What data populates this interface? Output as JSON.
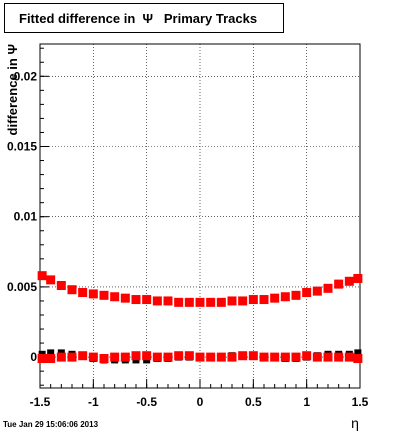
{
  "chart_data": {
    "type": "scatter",
    "title": "Fitted difference in  Ψ   Primary Tracks",
    "ylabel": "difference in Ψ",
    "xlabel": "η",
    "xlim": [
      -1.5,
      1.5
    ],
    "ylim": [
      -0.0022,
      0.0223
    ],
    "xticks": [
      "-1.5",
      "-1",
      "-0.5",
      "0",
      "0.5",
      "1",
      "1.5"
    ],
    "yticks": [
      "0",
      "0.005",
      "0.01",
      "0.015",
      "0.02"
    ],
    "grid": true,
    "series": [
      {
        "color": "#ff0000",
        "points": [
          [
            -1.48,
            0.0058
          ],
          [
            -1.4,
            0.0055
          ],
          [
            -1.3,
            0.0051
          ],
          [
            -1.2,
            0.0048
          ],
          [
            -1.1,
            0.0046
          ],
          [
            -1.0,
            0.0045
          ],
          [
            -0.9,
            0.0044
          ],
          [
            -0.8,
            0.0043
          ],
          [
            -0.7,
            0.0042
          ],
          [
            -0.6,
            0.0041
          ],
          [
            -0.5,
            0.0041
          ],
          [
            -0.4,
            0.004
          ],
          [
            -0.3,
            0.004
          ],
          [
            -0.2,
            0.0039
          ],
          [
            -0.1,
            0.0039
          ],
          [
            0.0,
            0.0039
          ],
          [
            0.1,
            0.0039
          ],
          [
            0.2,
            0.0039
          ],
          [
            0.3,
            0.004
          ],
          [
            0.4,
            0.004
          ],
          [
            0.5,
            0.0041
          ],
          [
            0.6,
            0.0041
          ],
          [
            0.7,
            0.0042
          ],
          [
            0.8,
            0.0043
          ],
          [
            0.9,
            0.0044
          ],
          [
            1.0,
            0.0046
          ],
          [
            1.1,
            0.0047
          ],
          [
            1.2,
            0.0049
          ],
          [
            1.3,
            0.0052
          ],
          [
            1.4,
            0.0054
          ],
          [
            1.48,
            0.0056
          ]
        ]
      },
      {
        "color": "#ff0000",
        "points": [
          [
            -1.48,
            -0.0001
          ],
          [
            -1.4,
            -0.0001
          ],
          [
            -1.3,
            0.0
          ],
          [
            -1.2,
            0.0
          ],
          [
            -1.1,
            0.0001
          ],
          [
            -1.0,
            0.0
          ],
          [
            -0.9,
            -0.0001
          ],
          [
            -0.8,
            0.0
          ],
          [
            -0.7,
            0.0
          ],
          [
            -0.6,
            0.0001
          ],
          [
            -0.5,
            0.0001
          ],
          [
            -0.4,
            0.0
          ],
          [
            -0.3,
            0.0
          ],
          [
            -0.2,
            0.0001
          ],
          [
            -0.1,
            0.0001
          ],
          [
            0.0,
            0.0
          ],
          [
            0.1,
            0.0
          ],
          [
            0.2,
            0.0
          ],
          [
            0.3,
            0.0
          ],
          [
            0.4,
            0.0001
          ],
          [
            0.5,
            0.0001
          ],
          [
            0.6,
            0.0
          ],
          [
            0.7,
            0.0
          ],
          [
            0.8,
            0.0
          ],
          [
            0.9,
            0.0
          ],
          [
            1.0,
            0.0001
          ],
          [
            1.1,
            0.0
          ],
          [
            1.2,
            0.0
          ],
          [
            1.3,
            0.0
          ],
          [
            1.4,
            0.0
          ],
          [
            1.48,
            -0.0001
          ]
        ]
      },
      {
        "color": "#000000",
        "points": [
          [
            -1.48,
            0.0002
          ],
          [
            -1.4,
            0.0003
          ],
          [
            -1.3,
            0.0003
          ],
          [
            -1.2,
            0.0002
          ],
          [
            -1.1,
            0.0001
          ],
          [
            -1.0,
            -0.0001
          ],
          [
            -0.9,
            -0.0002
          ],
          [
            -0.8,
            -0.0002
          ],
          [
            -0.7,
            -0.0002
          ],
          [
            -0.6,
            -0.0002
          ],
          [
            -0.5,
            -0.0002
          ],
          [
            -0.4,
            -0.0001
          ],
          [
            -0.3,
            -0.0001
          ],
          [
            -0.2,
            0.0
          ],
          [
            -0.1,
            0.0
          ],
          [
            0.0,
            0.0
          ],
          [
            0.1,
            0.0
          ],
          [
            0.2,
            0.0
          ],
          [
            0.3,
            0.0001
          ],
          [
            0.4,
            0.0001
          ],
          [
            0.5,
            0.0001
          ],
          [
            0.6,
            0.0
          ],
          [
            0.7,
            0.0
          ],
          [
            0.8,
            -0.0001
          ],
          [
            0.9,
            -0.0001
          ],
          [
            1.0,
            0.0
          ],
          [
            1.1,
            0.0001
          ],
          [
            1.2,
            0.0002
          ],
          [
            1.3,
            0.0002
          ],
          [
            1.4,
            0.0002
          ],
          [
            1.48,
            0.0003
          ]
        ]
      }
    ]
  },
  "footer": {
    "timestamp": "Tue Jan 29 15:06:06 2013"
  }
}
